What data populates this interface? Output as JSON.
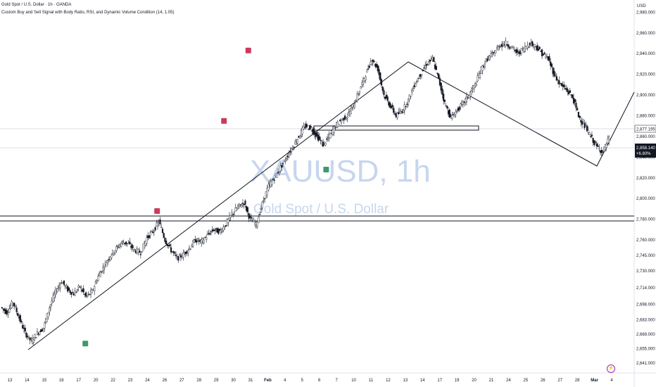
{
  "header": {
    "title": "Gold Spot / U.S. Dollar · 1h · OANDA",
    "indicator": "Custom Buy and Sell Signal with Body Ratio, RSI, and Dynamic Volume Condition (14, 1.05)"
  },
  "watermark": {
    "symbol": "XAUUSD, 1h",
    "name": "Gold Spot / U.S. Dollar"
  },
  "currency": "USD",
  "last_price": {
    "value": "2,858.140",
    "change": "+6.80%"
  },
  "marker_price": "2,877.195",
  "colors": {
    "up": "#131722",
    "down": "#131722",
    "sell_marker": "#cc3a5b",
    "buy_marker": "#3e9a6b",
    "axis_bg": "#ffffff",
    "last_bg": "#131722"
  },
  "chart_data": {
    "type": "line",
    "title": "XAUUSD, 1h",
    "ylim": [
      2635,
      2985
    ],
    "y_ticks": [
      "2,980.000",
      "2,960.000",
      "2,940.000",
      "2,920.000",
      "2,900.000",
      "2,880.000",
      "2,860.000",
      "2,840.000",
      "2,820.000",
      "2,800.000",
      "2,780.000",
      "2,760.000",
      "2,745.000",
      "2,730.000",
      "2,714.000",
      "2,698.000",
      "2,683.000",
      "2,669.000",
      "2,655.000",
      "2,641.000"
    ],
    "x_ticks": [
      "13",
      "14",
      "15",
      "16",
      "17",
      "20",
      "22",
      "23",
      "24",
      "26",
      "27",
      "28",
      "29",
      "30",
      "31",
      "Feb",
      "4",
      "5",
      "6",
      "7",
      "10",
      "11",
      "12",
      "13",
      "14",
      "17",
      "19",
      "20",
      "21",
      "24",
      "25",
      "26",
      "27",
      "28",
      "Mar",
      "4"
    ],
    "series": [
      {
        "values": [
          2695,
          2690,
          2700,
          2685,
          2670,
          2662,
          2670,
          2675,
          2695,
          2710,
          2720,
          2712,
          2708,
          2715,
          2705,
          2710,
          2725,
          2735,
          2745,
          2752,
          2758,
          2756,
          2750,
          2748,
          2762,
          2768,
          2778,
          2760,
          2750,
          2742,
          2746,
          2752,
          2760,
          2758,
          2765,
          2770,
          2768,
          2775,
          2785,
          2792,
          2796,
          2780,
          2775,
          2795,
          2812,
          2820,
          2830,
          2840,
          2850,
          2860,
          2870,
          2868,
          2860,
          2852,
          2860,
          2870,
          2876,
          2880,
          2890,
          2905,
          2920,
          2935,
          2925,
          2900,
          2890,
          2880,
          2885,
          2895,
          2910,
          2920,
          2930,
          2935,
          2915,
          2892,
          2878,
          2885,
          2892,
          2900,
          2910,
          2925,
          2935,
          2940,
          2948,
          2950,
          2946,
          2940,
          2945,
          2950,
          2947,
          2940,
          2935,
          2920,
          2910,
          2905,
          2898,
          2880,
          2870,
          2860,
          2850,
          2845,
          2858
        ]
      }
    ],
    "signals": [
      {
        "type": "buy",
        "x": 13.8,
        "y": 2660
      },
      {
        "type": "sell",
        "x": 25.6,
        "y": 2788
      },
      {
        "type": "sell",
        "x": 36.6,
        "y": 2875
      },
      {
        "type": "sell",
        "x": 40.6,
        "y": 2943
      },
      {
        "type": "buy",
        "x": 53.4,
        "y": 2828
      }
    ]
  }
}
